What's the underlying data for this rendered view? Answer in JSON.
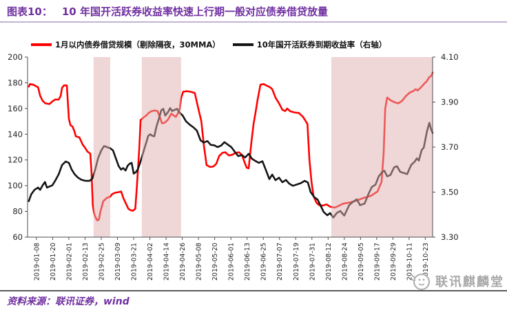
{
  "header": {
    "fig_label": "图表10：",
    "title": "10 年国开活跃券收益率快速上行期一般对应债券借贷放量"
  },
  "legend": [
    {
      "label": "1月以内债券借贷规模（剔除隔夜，30MMA）",
      "color": "#FE0000"
    },
    {
      "label": "10年国开活跃券到期收益率（右轴）",
      "color": "#141414"
    }
  ],
  "footer": {
    "source": "资料来源：联讯证券，wind",
    "logo_text": "联讯麒麟堂"
  },
  "colors": {
    "accent_purple": "#7030A0",
    "band_fill": "rgba(221,175,174,0.5)",
    "axis": "#4d4d4d",
    "tick_text": "#262626"
  },
  "chart_data": {
    "type": "line",
    "title": "10 年国开活跃券收益率快速上行期一般对应债券借贷放量",
    "grid": false,
    "legend_position": "top",
    "left_axis": {
      "min": 60,
      "max": 200,
      "step": 20,
      "labels": [
        "200",
        "180",
        "160",
        "140",
        "120",
        "100",
        "80",
        "60"
      ]
    },
    "right_axis": {
      "min": 3.3,
      "max": 4.1,
      "step": 0.2,
      "labels": [
        "4.10",
        "3.90",
        "3.70",
        "3.50",
        "3.30"
      ]
    },
    "x_tick_labels": [
      "2019-01-08",
      "2019-01-20",
      "2019-02-01",
      "2019-02-13",
      "2019-02-25",
      "2019-03-09",
      "2019-03-21",
      "2019-04-02",
      "2019-04-14",
      "2019-04-26",
      "2019-05-08",
      "2019-05-20",
      "2019-06-01",
      "2019-06-13",
      "2019-06-25",
      "2019-07-07",
      "2019-07-19",
      "2019-07-31",
      "2019-08-12",
      "2019-08-24",
      "2019-09-05",
      "2019-09-17",
      "2019-09-29",
      "2019-10-11",
      "2019-10-23"
    ],
    "x_first_tick_pct": 2.2,
    "x_tick_spacing_pct": 4.0,
    "shaded_bands_pct": [
      [
        16.3,
        20.4
      ],
      [
        28.2,
        37.9
      ],
      [
        75.0,
        100.0
      ]
    ],
    "series": [
      {
        "name": "1月以内债券借贷规模（剔除隔夜，30MMA）",
        "axis": "left",
        "color": "#FE0000",
        "points": [
          [
            0.3,
            177
          ],
          [
            0.6,
            179
          ],
          [
            1.4,
            178.5
          ],
          [
            2.6,
            176.5
          ],
          [
            3.1,
            170
          ],
          [
            3.7,
            166
          ],
          [
            4.4,
            164
          ],
          [
            5.4,
            163.5
          ],
          [
            6.1,
            165.5
          ],
          [
            6.8,
            167
          ],
          [
            7.7,
            167
          ],
          [
            8.2,
            170
          ],
          [
            8.5,
            176
          ],
          [
            9.0,
            178
          ],
          [
            9.7,
            178
          ],
          [
            10.2,
            152
          ],
          [
            10.6,
            147
          ],
          [
            11.1,
            146
          ],
          [
            11.6,
            142
          ],
          [
            11.9,
            138.5
          ],
          [
            12.8,
            137.5
          ],
          [
            13.6,
            132
          ],
          [
            14.3,
            129
          ],
          [
            14.8,
            126.5
          ],
          [
            15.5,
            125
          ],
          [
            15.8,
            110
          ],
          [
            16.1,
            85
          ],
          [
            16.4,
            79
          ],
          [
            16.7,
            76
          ],
          [
            17.2,
            73
          ],
          [
            17.6,
            73.5
          ],
          [
            18.0,
            80
          ],
          [
            18.7,
            88
          ],
          [
            19.6,
            90.5
          ],
          [
            20.4,
            91.5
          ],
          [
            20.9,
            93.5
          ],
          [
            21.6,
            94.5
          ],
          [
            22.5,
            95
          ],
          [
            23.1,
            95.5
          ],
          [
            23.7,
            90
          ],
          [
            24.3,
            86
          ],
          [
            24.9,
            82
          ],
          [
            25.4,
            81
          ],
          [
            26.0,
            80.5
          ],
          [
            26.6,
            82
          ],
          [
            27.0,
            100
          ],
          [
            27.6,
            130
          ],
          [
            27.9,
            151
          ],
          [
            28.6,
            153
          ],
          [
            29.3,
            154.5
          ],
          [
            29.9,
            156.5
          ],
          [
            30.6,
            158
          ],
          [
            31.5,
            158.5
          ],
          [
            32.1,
            158
          ],
          [
            32.7,
            153
          ],
          [
            33.2,
            148.5
          ],
          [
            33.9,
            149
          ],
          [
            34.7,
            151.5
          ],
          [
            35.5,
            156
          ],
          [
            36.1,
            154.5
          ],
          [
            36.6,
            153.5
          ],
          [
            37.1,
            156
          ],
          [
            37.6,
            160
          ],
          [
            37.9,
            168
          ],
          [
            38.4,
            173
          ],
          [
            39.3,
            173.5
          ],
          [
            40.3,
            173
          ],
          [
            41.3,
            172
          ],
          [
            42.0,
            162
          ],
          [
            42.9,
            150
          ],
          [
            43.5,
            132
          ],
          [
            44.2,
            116
          ],
          [
            45.1,
            114.5
          ],
          [
            45.9,
            115
          ],
          [
            46.6,
            117
          ],
          [
            47.3,
            123
          ],
          [
            48.1,
            125.5
          ],
          [
            48.8,
            126
          ],
          [
            49.7,
            123.5
          ],
          [
            50.5,
            124
          ],
          [
            51.4,
            125.5
          ],
          [
            52.2,
            126
          ],
          [
            52.9,
            124
          ],
          [
            53.6,
            118
          ],
          [
            54.1,
            114
          ],
          [
            54.6,
            113.5
          ],
          [
            55.3,
            135
          ],
          [
            55.8,
            148
          ],
          [
            56.3,
            157
          ],
          [
            56.8,
            167
          ],
          [
            57.5,
            178.5
          ],
          [
            58.3,
            179
          ],
          [
            59.2,
            177.5
          ],
          [
            59.9,
            176.5
          ],
          [
            60.4,
            175
          ],
          [
            61.2,
            168.5
          ],
          [
            62.1,
            164
          ],
          [
            62.9,
            159
          ],
          [
            63.6,
            158
          ],
          [
            64.1,
            160
          ],
          [
            64.8,
            158
          ],
          [
            65.8,
            157
          ],
          [
            67.0,
            156.5
          ],
          [
            68.0,
            153.5
          ],
          [
            68.5,
            151
          ],
          [
            69.1,
            148
          ],
          [
            69.6,
            120
          ],
          [
            70.1,
            103
          ],
          [
            70.6,
            92
          ],
          [
            71.3,
            87
          ],
          [
            71.9,
            85
          ],
          [
            72.8,
            84.5
          ],
          [
            73.8,
            85.5
          ],
          [
            74.8,
            83.5
          ],
          [
            75.9,
            83
          ],
          [
            76.9,
            84.5
          ],
          [
            77.9,
            86
          ],
          [
            79.6,
            87
          ],
          [
            81.3,
            88.5
          ],
          [
            83.0,
            90.5
          ],
          [
            84.7,
            92
          ],
          [
            86.4,
            95.5
          ],
          [
            87.4,
            103
          ],
          [
            87.9,
            125
          ],
          [
            88.3,
            160
          ],
          [
            88.8,
            168.5
          ],
          [
            89.6,
            166.5
          ],
          [
            90.5,
            165
          ],
          [
            91.5,
            164
          ],
          [
            92.5,
            166
          ],
          [
            93.5,
            170
          ],
          [
            94.4,
            172.5
          ],
          [
            95.2,
            173.5
          ],
          [
            95.8,
            175
          ],
          [
            96.3,
            174
          ],
          [
            96.8,
            175.5
          ],
          [
            97.3,
            177
          ],
          [
            98.0,
            179.5
          ],
          [
            98.5,
            181
          ],
          [
            99.2,
            184.5
          ],
          [
            99.5,
            185
          ],
          [
            99.8,
            186
          ],
          [
            100,
            188
          ]
        ]
      },
      {
        "name": "10年国开活跃券到期收益率（右轴）",
        "axis": "right",
        "color": "#141414",
        "points": [
          [
            0.3,
            3.46
          ],
          [
            0.9,
            3.49
          ],
          [
            1.7,
            3.51
          ],
          [
            2.6,
            3.52
          ],
          [
            3.1,
            3.51
          ],
          [
            3.7,
            3.53
          ],
          [
            4.3,
            3.545
          ],
          [
            4.8,
            3.52
          ],
          [
            5.4,
            3.525
          ],
          [
            6.1,
            3.53
          ],
          [
            6.8,
            3.55
          ],
          [
            7.7,
            3.58
          ],
          [
            8.5,
            3.62
          ],
          [
            9.4,
            3.636
          ],
          [
            10.2,
            3.63
          ],
          [
            10.9,
            3.6
          ],
          [
            11.6,
            3.58
          ],
          [
            12.4,
            3.565
          ],
          [
            13.3,
            3.555
          ],
          [
            14.3,
            3.55
          ],
          [
            15.3,
            3.55
          ],
          [
            16.0,
            3.56
          ],
          [
            16.7,
            3.6
          ],
          [
            17.4,
            3.65
          ],
          [
            18.2,
            3.685
          ],
          [
            18.9,
            3.705
          ],
          [
            19.6,
            3.7
          ],
          [
            20.4,
            3.695
          ],
          [
            21.1,
            3.685
          ],
          [
            21.8,
            3.65
          ],
          [
            22.5,
            3.615
          ],
          [
            23.1,
            3.6
          ],
          [
            23.6,
            3.607
          ],
          [
            24.2,
            3.596
          ],
          [
            24.7,
            3.617
          ],
          [
            25.2,
            3.626
          ],
          [
            25.7,
            3.63
          ],
          [
            26.2,
            3.582
          ],
          [
            26.7,
            3.588
          ],
          [
            27.2,
            3.6
          ],
          [
            27.7,
            3.625
          ],
          [
            28.2,
            3.655
          ],
          [
            28.7,
            3.685
          ],
          [
            29.3,
            3.72
          ],
          [
            29.8,
            3.75
          ],
          [
            30.3,
            3.757
          ],
          [
            30.8,
            3.75
          ],
          [
            31.3,
            3.748
          ],
          [
            31.8,
            3.79
          ],
          [
            32.5,
            3.83
          ],
          [
            33.0,
            3.863
          ],
          [
            33.5,
            3.87
          ],
          [
            34.0,
            3.84
          ],
          [
            34.7,
            3.856
          ],
          [
            35.2,
            3.873
          ],
          [
            35.7,
            3.86
          ],
          [
            36.4,
            3.866
          ],
          [
            36.9,
            3.87
          ],
          [
            37.4,
            3.856
          ],
          [
            38.3,
            3.84
          ],
          [
            39.1,
            3.815
          ],
          [
            40.0,
            3.8
          ],
          [
            41.0,
            3.787
          ],
          [
            41.8,
            3.773
          ],
          [
            42.7,
            3.73
          ],
          [
            43.5,
            3.72
          ],
          [
            44.4,
            3.727
          ],
          [
            45.2,
            3.71
          ],
          [
            46.1,
            3.708
          ],
          [
            46.9,
            3.7
          ],
          [
            47.8,
            3.707
          ],
          [
            48.6,
            3.722
          ],
          [
            49.5,
            3.71
          ],
          [
            50.3,
            3.7
          ],
          [
            51.2,
            3.678
          ],
          [
            52.0,
            3.66
          ],
          [
            52.9,
            3.665
          ],
          [
            53.7,
            3.654
          ],
          [
            54.6,
            3.67
          ],
          [
            55.4,
            3.648
          ],
          [
            56.3,
            3.638
          ],
          [
            57.1,
            3.63
          ],
          [
            58.0,
            3.637
          ],
          [
            58.8,
            3.6
          ],
          [
            59.7,
            3.558
          ],
          [
            60.4,
            3.578
          ],
          [
            61.2,
            3.553
          ],
          [
            62.1,
            3.564
          ],
          [
            62.9,
            3.544
          ],
          [
            63.8,
            3.554
          ],
          [
            64.6,
            3.538
          ],
          [
            65.5,
            3.528
          ],
          [
            66.5,
            3.534
          ],
          [
            67.5,
            3.54
          ],
          [
            68.4,
            3.55
          ],
          [
            69.2,
            3.543
          ],
          [
            69.9,
            3.5
          ],
          [
            70.8,
            3.477
          ],
          [
            71.6,
            3.467
          ],
          [
            72.3,
            3.442
          ],
          [
            73.1,
            3.412
          ],
          [
            74.0,
            3.397
          ],
          [
            74.7,
            3.407
          ],
          [
            75.5,
            3.387
          ],
          [
            76.4,
            3.408
          ],
          [
            77.2,
            3.416
          ],
          [
            78.2,
            3.396
          ],
          [
            79.4,
            3.442
          ],
          [
            80.4,
            3.458
          ],
          [
            81.3,
            3.468
          ],
          [
            82.1,
            3.442
          ],
          [
            83.2,
            3.449
          ],
          [
            84.2,
            3.493
          ],
          [
            85.0,
            3.523
          ],
          [
            85.9,
            3.533
          ],
          [
            86.7,
            3.57
          ],
          [
            87.6,
            3.59
          ],
          [
            88.1,
            3.595
          ],
          [
            88.8,
            3.57
          ],
          [
            89.6,
            3.576
          ],
          [
            90.5,
            3.61
          ],
          [
            91.2,
            3.615
          ],
          [
            92.0,
            3.59
          ],
          [
            92.9,
            3.585
          ],
          [
            93.7,
            3.58
          ],
          [
            94.7,
            3.62
          ],
          [
            95.6,
            3.636
          ],
          [
            96.1,
            3.65
          ],
          [
            96.6,
            3.64
          ],
          [
            97.3,
            3.687
          ],
          [
            97.8,
            3.697
          ],
          [
            98.6,
            3.77
          ],
          [
            99.2,
            3.808
          ],
          [
            99.7,
            3.775
          ],
          [
            100,
            3.763
          ]
        ]
      }
    ]
  }
}
